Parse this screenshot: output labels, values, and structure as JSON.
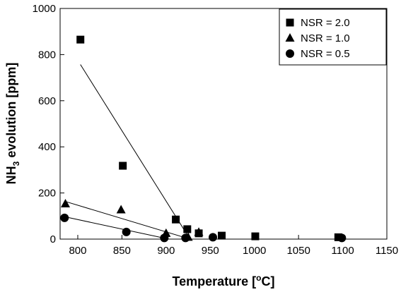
{
  "chart_data": {
    "type": "scatter",
    "xlabel": "Temperature [°C]",
    "ylabel": "NH3 evolution [ppm]",
    "xlim": [
      780,
      1150
    ],
    "ylim": [
      0,
      1000
    ],
    "xticks": [
      800,
      850,
      900,
      950,
      1000,
      1050,
      1100,
      1150
    ],
    "yticks": [
      0,
      200,
      400,
      600,
      800,
      1000
    ],
    "legend_position": "top-right",
    "grid": false,
    "series": [
      {
        "name": "NSR = 2.0",
        "marker": "square",
        "x": [
          803,
          851,
          911,
          924,
          937,
          963,
          1001,
          1095
        ],
        "y": [
          865,
          318,
          85,
          43,
          25,
          15,
          12,
          8
        ],
        "fit_line": {
          "x": [
            803,
            927
          ],
          "y": [
            757,
            0
          ]
        }
      },
      {
        "name": "NSR = 1.0",
        "marker": "triangle",
        "x": [
          786,
          849,
          900,
          925,
          937
        ],
        "y": [
          153,
          127,
          25,
          8,
          30
        ],
        "fit_line": {
          "x": [
            786,
            927
          ],
          "y": [
            163,
            0
          ]
        }
      },
      {
        "name": "NSR = 0.5",
        "marker": "circle",
        "x": [
          785,
          855,
          898,
          922,
          953,
          1099
        ],
        "y": [
          92,
          31,
          5,
          5,
          8,
          5
        ],
        "fit_line": {
          "x": [
            785,
            903
          ],
          "y": [
            97,
            0
          ]
        }
      }
    ]
  }
}
